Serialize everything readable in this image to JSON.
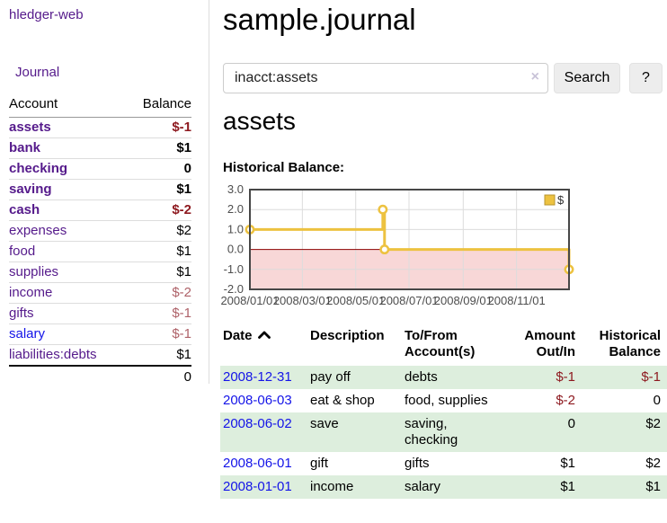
{
  "sidebar": {
    "brand": "hledger-web",
    "nav": {
      "journal": "Journal"
    },
    "accounts_table": {
      "headers": {
        "account": "Account",
        "balance": "Balance"
      },
      "rows": [
        {
          "name": "assets",
          "depth": 1,
          "bold": true,
          "name_color": "purple",
          "balance": "$-1",
          "balance_color": "neg-strong"
        },
        {
          "name": "bank",
          "depth": 2,
          "bold": true,
          "name_color": "purple",
          "balance": "$1",
          "balance_color": "black"
        },
        {
          "name": "checking",
          "depth": 3,
          "bold": true,
          "name_color": "purple",
          "balance": "0",
          "balance_color": "black"
        },
        {
          "name": "saving",
          "depth": 3,
          "bold": true,
          "name_color": "purple",
          "balance": "$1",
          "balance_color": "black"
        },
        {
          "name": "cash",
          "depth": 2,
          "bold": true,
          "name_color": "purple",
          "balance": "$-2",
          "balance_color": "neg-strong"
        },
        {
          "name": "expenses",
          "depth": 1,
          "bold": false,
          "name_color": "purple",
          "balance": "$2",
          "balance_color": "black"
        },
        {
          "name": "food",
          "depth": 2,
          "bold": false,
          "name_color": "purple",
          "balance": "$1",
          "balance_color": "black"
        },
        {
          "name": "supplies",
          "depth": 2,
          "bold": false,
          "name_color": "purple",
          "balance": "$1",
          "balance_color": "black"
        },
        {
          "name": "income",
          "depth": 1,
          "bold": false,
          "name_color": "purple",
          "balance": "$-2",
          "balance_color": "neg-muted"
        },
        {
          "name": "gifts",
          "depth": 2,
          "bold": false,
          "name_color": "purple",
          "balance": "$-1",
          "balance_color": "neg-muted"
        },
        {
          "name": "salary",
          "depth": 2,
          "bold": false,
          "name_color": "blue",
          "balance": "$-1",
          "balance_color": "neg-muted"
        },
        {
          "name": "liabilities:debts",
          "depth": 1,
          "bold": false,
          "name_color": "purple",
          "balance": "$1",
          "balance_color": "black"
        }
      ],
      "total": "0"
    }
  },
  "main": {
    "title": "sample.journal",
    "search": {
      "value": "inacct:assets",
      "clear_icon": "×",
      "button": "Search",
      "help_button": "?"
    },
    "account_heading": "assets",
    "chart_label": "Historical Balance:"
  },
  "chart_data": {
    "type": "line",
    "step": true,
    "title": "Historical Balance",
    "xlabel": "",
    "ylabel": "",
    "x_range": [
      "2008-01-01",
      "2008-12-31"
    ],
    "ylim": [
      -2,
      3
    ],
    "y_ticks": [
      3.0,
      2.0,
      1.0,
      0.0,
      -1.0,
      -2.0
    ],
    "y_tick_labels": [
      "3.0",
      "2.0",
      "1.0",
      "0.0",
      "-1.0",
      "-2.0"
    ],
    "x_ticks": [
      {
        "date": "2008-01-01",
        "label": "2008/01/01"
      },
      {
        "date": "2008-03-01",
        "label": "2008/03/01"
      },
      {
        "date": "2008-05-01",
        "label": "2008/05/01"
      },
      {
        "date": "2008-07-01",
        "label": "2008/07/01"
      },
      {
        "date": "2008-09-01",
        "label": "2008/09/01"
      },
      {
        "date": "2008-11-01",
        "label": "2008/11/01"
      }
    ],
    "grid": true,
    "legend_position": "top-right",
    "series": [
      {
        "name": "$",
        "color": "#edc240",
        "points": [
          [
            "2008-01-01",
            1
          ],
          [
            "2008-06-01",
            2
          ],
          [
            "2008-06-03",
            0
          ],
          [
            "2008-12-31",
            -1
          ]
        ]
      }
    ],
    "negative_region_color": "#f8d7d7",
    "zero_line_color": "#8b0000"
  },
  "register": {
    "headers": {
      "date": "Date",
      "description": "Description",
      "accounts": "To/From Account(s)",
      "amount": "Amount Out/In",
      "balance": "Historical Balance"
    },
    "sort": {
      "column": "date",
      "direction": "ascending"
    },
    "rows": [
      {
        "date": "2008-12-31",
        "description": "pay off",
        "accounts": "debts",
        "amount": "$-1",
        "amount_negative": true,
        "balance": "$-1",
        "balance_negative": true,
        "shaded": true
      },
      {
        "date": "2008-06-03",
        "description": "eat & shop",
        "accounts": "food, supplies",
        "amount": "$-2",
        "amount_negative": true,
        "balance": "0",
        "balance_negative": false,
        "shaded": false
      },
      {
        "date": "2008-06-02",
        "description": "save",
        "accounts": "saving, checking",
        "amount": "0",
        "amount_negative": false,
        "balance": "$2",
        "balance_negative": false,
        "shaded": true
      },
      {
        "date": "2008-06-01",
        "description": "gift",
        "accounts": "gifts",
        "amount": "$1",
        "amount_negative": false,
        "balance": "$2",
        "balance_negative": false,
        "shaded": false
      },
      {
        "date": "2008-01-01",
        "description": "income",
        "accounts": "salary",
        "amount": "$1",
        "amount_negative": false,
        "balance": "$1",
        "balance_negative": false,
        "shaded": true
      }
    ]
  },
  "colors": {
    "accent_purple": "#551a8b",
    "link_blue": "#1414e8",
    "negative_strong": "#8e1a20",
    "negative_muted": "#ae6168",
    "row_highlight": "#ddeedd",
    "chart_line": "#edc240",
    "chart_negative_region": "#f8d7d7",
    "chart_zero_line": "#8b0000"
  }
}
